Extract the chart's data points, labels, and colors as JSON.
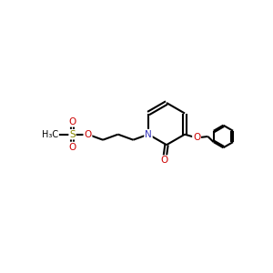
{
  "title": "",
  "bg_color": "#ffffff",
  "atom_colors": {
    "C": "#000000",
    "N": "#3333bb",
    "O": "#cc0000",
    "S": "#888800",
    "H": "#000000"
  },
  "bond_color": "#000000",
  "linewidth": 1.5,
  "figsize": [
    3.0,
    3.0
  ],
  "dpi": 100
}
